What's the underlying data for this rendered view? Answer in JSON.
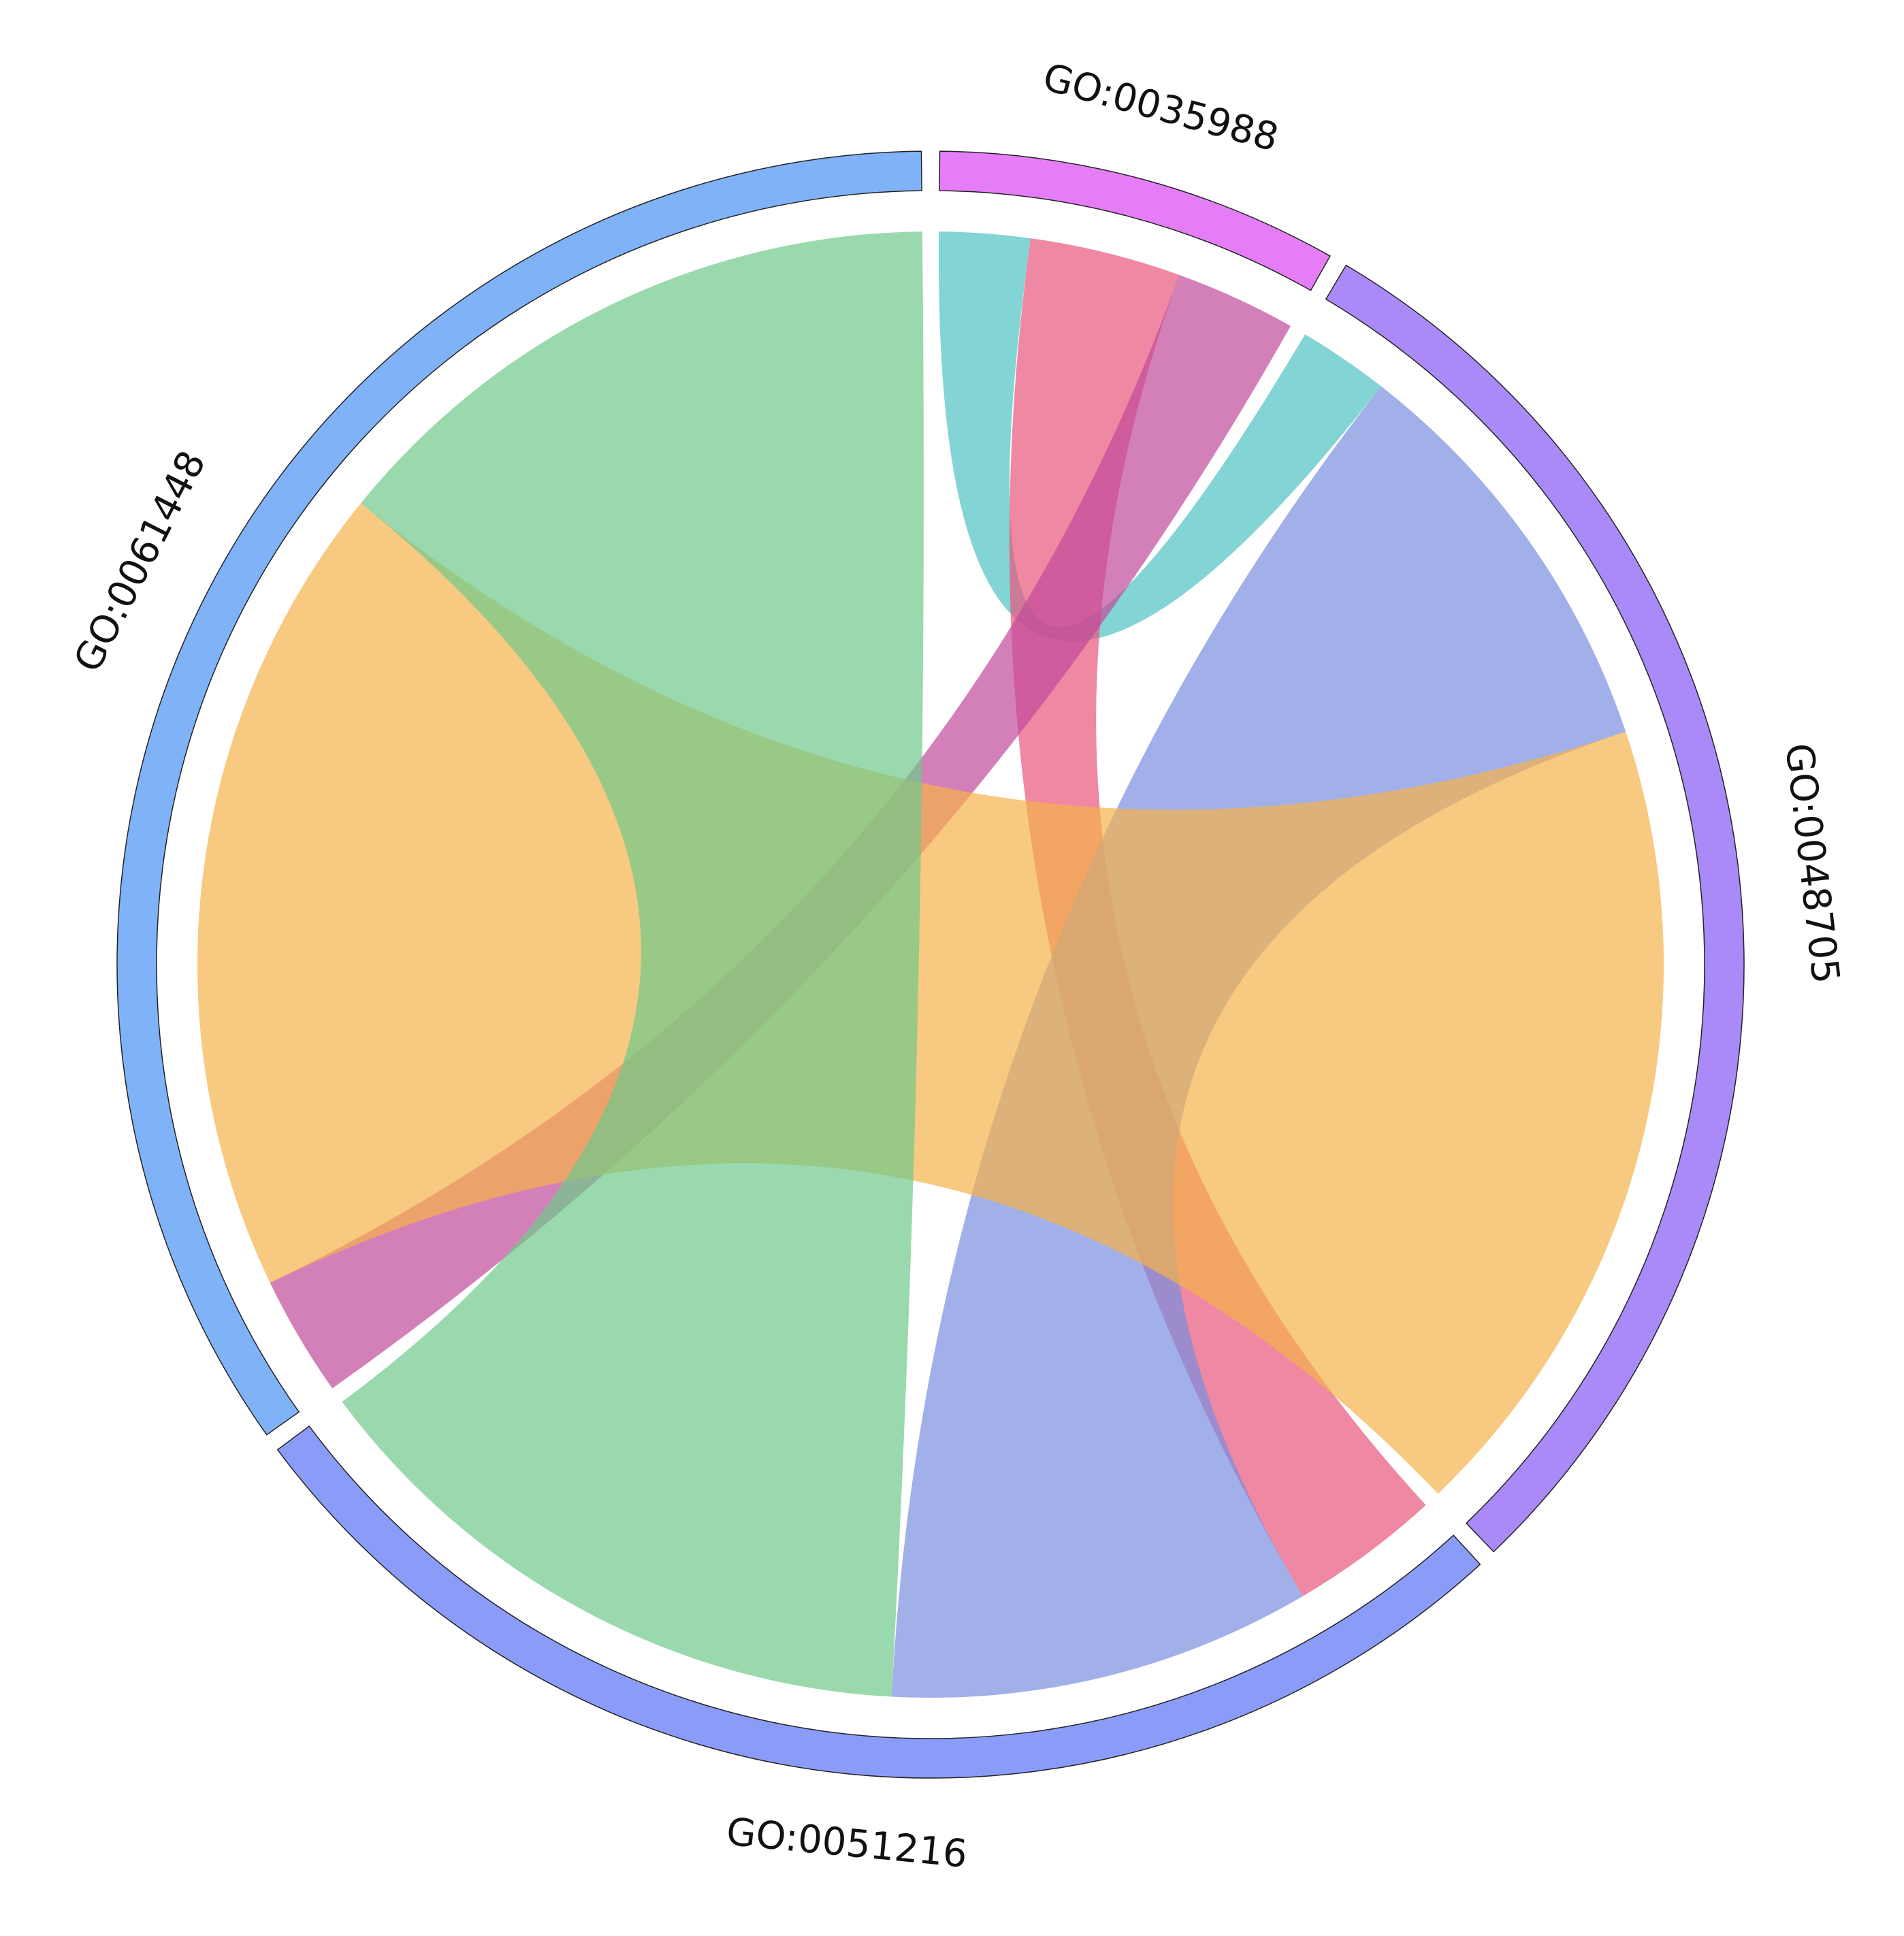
{
  "chart_data": {
    "type": "chord",
    "sectors": [
      {
        "name": "GO:0035988",
        "color": "#e57ef6"
      },
      {
        "name": "GO:0048705",
        "color": "#a98af8"
      },
      {
        "name": "GO:0051216",
        "color": "#8b9cf8"
      },
      {
        "name": "GO:0061448",
        "color": "#80b2f8"
      }
    ],
    "links": [
      {
        "source": "GO:0035988",
        "target": "GO:0048705",
        "value": 3,
        "color": "#4fc2c2"
      },
      {
        "source": "GO:0035988",
        "target": "GO:0051216",
        "value": 5,
        "color": "#e8557a"
      },
      {
        "source": "GO:0035988",
        "target": "GO:0061448",
        "value": 4,
        "color": "#c24a9a"
      },
      {
        "source": "GO:0048705",
        "target": "GO:0051216",
        "value": 14,
        "color": "#7a8fe0"
      },
      {
        "source": "GO:0048705",
        "target": "GO:0061448",
        "value": 27,
        "color": "#f5b24a"
      },
      {
        "source": "GO:0051216",
        "target": "GO:0061448",
        "value": 21,
        "color": "#6fc98a"
      }
    ]
  }
}
